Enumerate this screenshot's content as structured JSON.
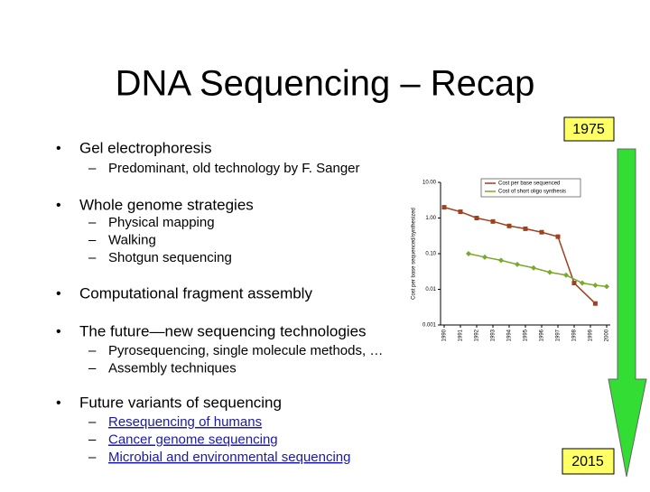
{
  "title": "DNA Sequencing – Recap",
  "timeline": {
    "start": "1975",
    "end": "2015"
  },
  "bullets": [
    {
      "text": "Gel electrophoresis",
      "subitems": [
        "Predominant, old technology by F. Sanger"
      ]
    },
    {
      "text": "Whole genome strategies",
      "subitems": [
        "Physical mapping",
        "Walking",
        "Shotgun sequencing"
      ]
    },
    {
      "text": "Computational fragment assembly",
      "subitems": []
    },
    {
      "text": "The future—new sequencing technologies",
      "subitems": [
        "Pyrosequencing, single molecule methods, …",
        "Assembly techniques"
      ]
    },
    {
      "text": "Future variants of sequencing",
      "subitems": [
        "Resequencing of humans",
        "Cancer genome sequencing",
        "Microbial and environmental sequencing"
      ]
    }
  ],
  "chart_data": {
    "type": "line",
    "y_label": "Cost per base sequenced/synthesized",
    "ylog": true,
    "ylim": [
      0.001,
      10
    ],
    "yticks": [
      {
        "value": 10,
        "label": "10.00"
      },
      {
        "value": 1,
        "label": "1.00"
      },
      {
        "value": 0.1,
        "label": "0.10"
      },
      {
        "value": 0.01,
        "label": "0.01"
      },
      {
        "value": 0.001,
        "label": "0.001"
      }
    ],
    "xlim": [
      1990,
      2000
    ],
    "xticks": [
      1990,
      1991,
      1992,
      1993,
      1994,
      1995,
      1996,
      1997,
      1998,
      1999,
      2000
    ],
    "legend": "top-right",
    "series": [
      {
        "name": "Cost per base sequenced",
        "color": "#a0401c",
        "x": [
          1990,
          1991,
          1992,
          1993,
          1994,
          1995,
          1996,
          1997,
          1998,
          1999.3
        ],
        "values": [
          2,
          1.5,
          1,
          0.8,
          0.6,
          0.5,
          0.4,
          0.3,
          0.015,
          0.004
        ]
      },
      {
        "name": "Cost of short oligo synthesis",
        "color": "#7aa82a",
        "x": [
          1991.5,
          1992.5,
          1993.5,
          1994.5,
          1995.5,
          1996.5,
          1997.5,
          1998.5,
          1999.3,
          2000
        ],
        "values": [
          0.1,
          0.08,
          0.065,
          0.05,
          0.04,
          0.03,
          0.025,
          0.015,
          0.013,
          0.012
        ]
      }
    ]
  }
}
